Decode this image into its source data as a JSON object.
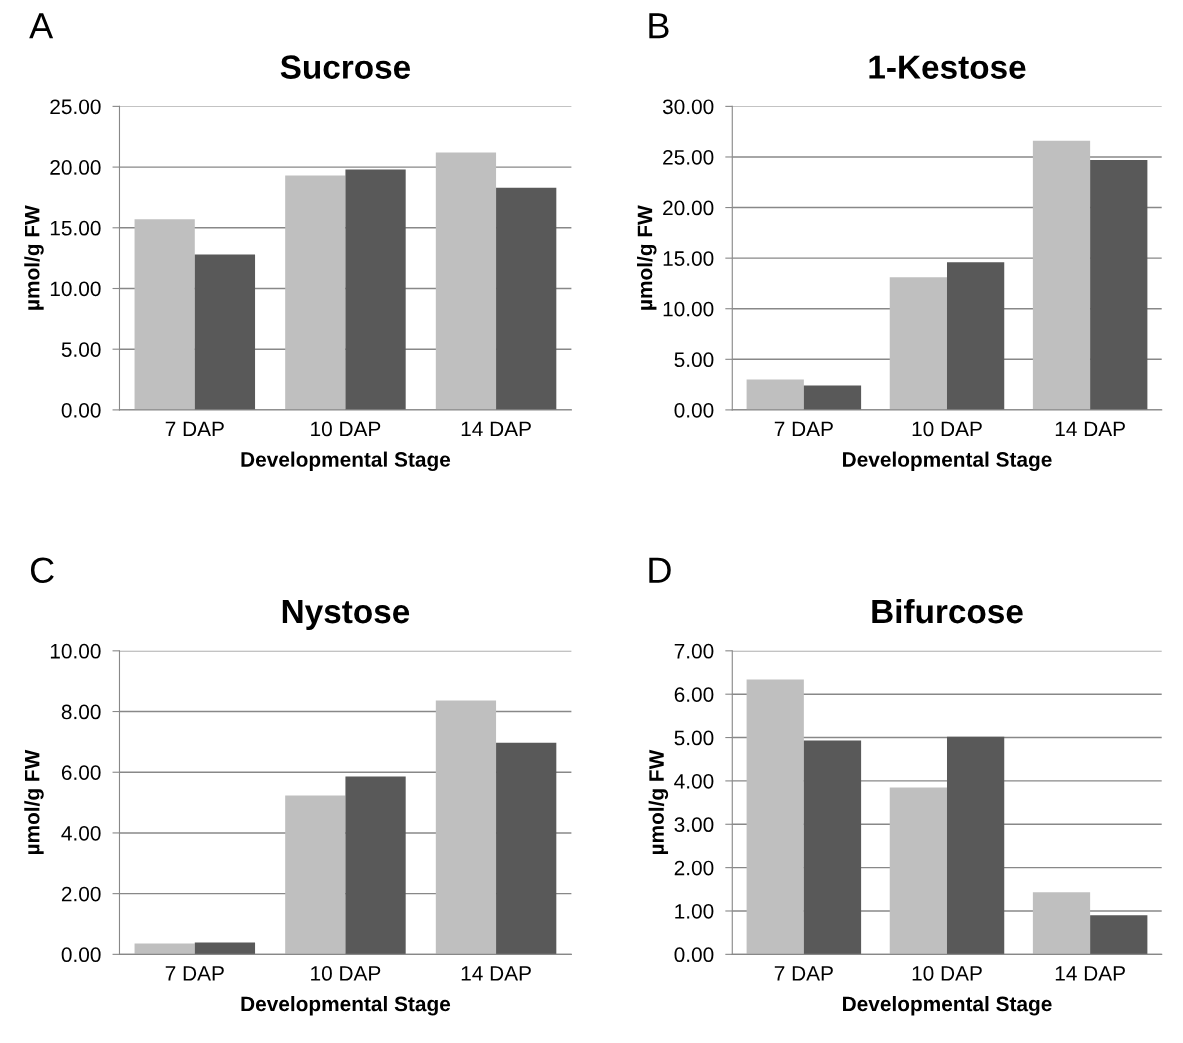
{
  "chart_data": [
    {
      "type": "bar",
      "title": "Sucrose",
      "xlabel": "Developmental Stage",
      "ylabel": "µmol/g FW",
      "annotations": [
        "A"
      ],
      "categories": [
        "7 DAP",
        "10 DAP",
        "14 DAP"
      ],
      "series": [
        {
          "color": "#bfbfbf",
          "values": [
            15.7,
            19.3,
            21.2
          ]
        },
        {
          "color": "#595959",
          "values": [
            12.8,
            19.8,
            18.3
          ]
        }
      ],
      "ylim": [
        0,
        25
      ],
      "yticks": [
        {
          "value": 0,
          "label": "0.00"
        },
        {
          "value": 5,
          "label": "5.00"
        },
        {
          "value": 10,
          "label": "10.00"
        },
        {
          "value": 15,
          "label": "15.00"
        },
        {
          "value": 20,
          "label": "20.00"
        },
        {
          "value": 25,
          "label": "25.00"
        }
      ],
      "grid": "y"
    },
    {
      "type": "bar",
      "title": "1-Kestose",
      "xlabel": "Developmental Stage",
      "ylabel": "µmol/g FW",
      "annotations": [
        "B"
      ],
      "categories": [
        "7 DAP",
        "10 DAP",
        "14 DAP"
      ],
      "series": [
        {
          "color": "#bfbfbf",
          "values": [
            3.0,
            13.1,
            26.6
          ]
        },
        {
          "color": "#595959",
          "values": [
            2.4,
            14.6,
            24.7
          ]
        }
      ],
      "ylim": [
        0,
        30
      ],
      "yticks": [
        {
          "value": 0,
          "label": "0.00"
        },
        {
          "value": 5,
          "label": "5.00"
        },
        {
          "value": 10,
          "label": "10.00"
        },
        {
          "value": 15,
          "label": "15.00"
        },
        {
          "value": 20,
          "label": "20.00"
        },
        {
          "value": 25,
          "label": "25.00"
        },
        {
          "value": 30,
          "label": "30.00"
        }
      ],
      "grid": "y"
    },
    {
      "type": "bar",
      "title": "Nystose",
      "xlabel": "Developmental Stage",
      "ylabel": "µmol/g FW",
      "annotations": [
        "C"
      ],
      "categories": [
        "7 DAP",
        "10 DAP",
        "14 DAP"
      ],
      "series": [
        {
          "color": "#bfbfbf",
          "values": [
            0.36,
            5.23,
            8.36
          ]
        },
        {
          "color": "#595959",
          "values": [
            0.39,
            5.86,
            6.97
          ]
        }
      ],
      "ylim": [
        0,
        10
      ],
      "yticks": [
        {
          "value": 0,
          "label": "0.00"
        },
        {
          "value": 2,
          "label": "2.00"
        },
        {
          "value": 4,
          "label": "4.00"
        },
        {
          "value": 6,
          "label": "6.00"
        },
        {
          "value": 8,
          "label": "8.00"
        },
        {
          "value": 10,
          "label": "10.00"
        }
      ],
      "grid": "y"
    },
    {
      "type": "bar",
      "title": "Bifurcose",
      "xlabel": "Developmental Stage",
      "ylabel": "µmol/g FW",
      "annotations": [
        "D"
      ],
      "categories": [
        "7 DAP",
        "10 DAP",
        "14 DAP"
      ],
      "series": [
        {
          "color": "#bfbfbf",
          "values": [
            6.34,
            3.85,
            1.43
          ]
        },
        {
          "color": "#595959",
          "values": [
            4.93,
            5.02,
            0.9
          ]
        }
      ],
      "ylim": [
        0,
        7
      ],
      "yticks": [
        {
          "value": 0,
          "label": "0.00"
        },
        {
          "value": 1,
          "label": "1.00"
        },
        {
          "value": 2,
          "label": "2.00"
        },
        {
          "value": 3,
          "label": "3.00"
        },
        {
          "value": 4,
          "label": "4.00"
        },
        {
          "value": 5,
          "label": "5.00"
        },
        {
          "value": 6,
          "label": "6.00"
        },
        {
          "value": 7,
          "label": "7.00"
        }
      ],
      "grid": "y"
    }
  ]
}
